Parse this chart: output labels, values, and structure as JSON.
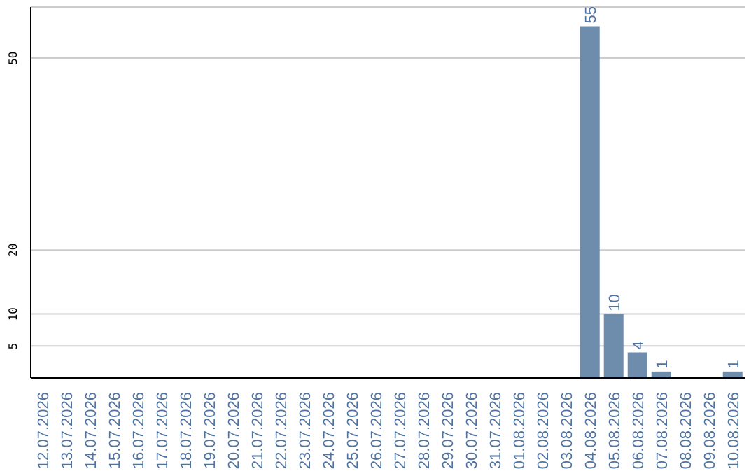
{
  "chart_data": {
    "type": "bar",
    "categories": [
      "12.07.2026",
      "13.07.2026",
      "14.07.2026",
      "15.07.2026",
      "16.07.2026",
      "17.07.2026",
      "18.07.2026",
      "19.07.2026",
      "20.07.2026",
      "21.07.2026",
      "22.07.2026",
      "23.07.2026",
      "24.07.2026",
      "25.07.2026",
      "26.07.2026",
      "27.07.2026",
      "28.07.2026",
      "29.07.2026",
      "30.07.2026",
      "31.07.2026",
      "01.08.2026",
      "02.08.2026",
      "03.08.2026",
      "04.08.2026",
      "05.08.2026",
      "06.08.2026",
      "07.08.2026",
      "08.08.2026",
      "09.08.2026",
      "10.08.2026"
    ],
    "values": [
      0,
      0,
      0,
      0,
      0,
      0,
      0,
      0,
      0,
      0,
      0,
      0,
      0,
      0,
      0,
      0,
      0,
      0,
      0,
      0,
      0,
      0,
      0,
      55,
      10,
      4,
      1,
      0,
      0,
      1
    ],
    "value_labels": [
      null,
      null,
      null,
      null,
      null,
      null,
      null,
      null,
      null,
      null,
      null,
      null,
      null,
      null,
      null,
      null,
      null,
      null,
      null,
      null,
      null,
      null,
      null,
      "55",
      "10",
      "4",
      "1",
      null,
      null,
      "1"
    ],
    "color": "#6e8cab",
    "ylim": [
      0,
      58
    ],
    "yticks": [
      5,
      10,
      20,
      50
    ],
    "grid": "y"
  }
}
